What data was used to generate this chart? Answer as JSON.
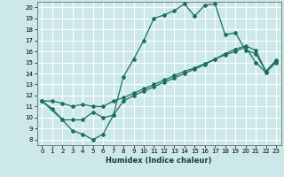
{
  "xlabel": "Humidex (Indice chaleur)",
  "xlim": [
    -0.5,
    23.5
  ],
  "ylim": [
    7.5,
    20.5
  ],
  "yticks": [
    8,
    9,
    10,
    11,
    12,
    13,
    14,
    15,
    16,
    17,
    18,
    19,
    20
  ],
  "xticks": [
    0,
    1,
    2,
    3,
    4,
    5,
    6,
    7,
    8,
    9,
    10,
    11,
    12,
    13,
    14,
    15,
    16,
    17,
    18,
    19,
    20,
    21,
    22,
    23
  ],
  "bg_color": "#cce8e8",
  "grid_color": "#ffffff",
  "line_color": "#1a6e64",
  "lines": [
    {
      "x": [
        0,
        1,
        2,
        3,
        4,
        5,
        6,
        7,
        8,
        9,
        10,
        11,
        12,
        13,
        14,
        15,
        16,
        17,
        18,
        19,
        20,
        21,
        22,
        23
      ],
      "y": [
        11.5,
        10.8,
        9.8,
        8.8,
        8.5,
        8.0,
        8.5,
        10.2,
        13.7,
        15.3,
        17.0,
        19.0,
        19.3,
        19.7,
        20.3,
        19.2,
        20.2,
        20.3,
        17.5,
        17.7,
        16.1,
        15.8,
        14.2,
        15.1
      ]
    },
    {
      "x": [
        0,
        2,
        3,
        4,
        5,
        6,
        7,
        8,
        9,
        10,
        11,
        12,
        13,
        14,
        15,
        16,
        17,
        18,
        19,
        20,
        21,
        22,
        23
      ],
      "y": [
        11.5,
        9.8,
        9.8,
        9.8,
        10.5,
        10.0,
        10.2,
        11.5,
        12.0,
        12.4,
        12.8,
        13.2,
        13.6,
        14.0,
        14.4,
        14.8,
        15.3,
        15.8,
        16.2,
        16.5,
        16.1,
        14.2,
        15.2
      ]
    },
    {
      "x": [
        0,
        1,
        2,
        3,
        4,
        5,
        6,
        7,
        8,
        9,
        10,
        11,
        12,
        13,
        14,
        15,
        16,
        17,
        18,
        19,
        20,
        21,
        22,
        23
      ],
      "y": [
        11.5,
        11.5,
        11.3,
        11.0,
        11.2,
        11.0,
        11.0,
        11.5,
        11.8,
        12.2,
        12.6,
        13.0,
        13.4,
        13.8,
        14.2,
        14.5,
        14.9,
        15.3,
        15.7,
        16.0,
        16.4,
        15.0,
        14.1,
        15.0
      ]
    }
  ]
}
